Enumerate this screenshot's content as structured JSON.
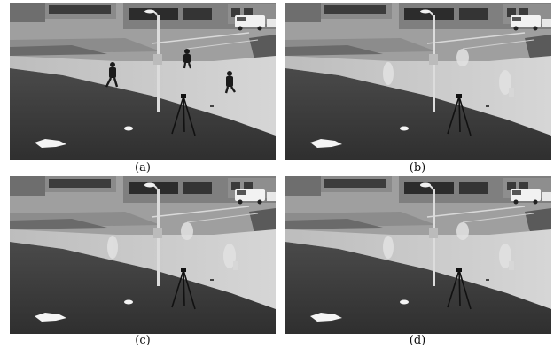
{
  "panels": [
    {
      "id": "a",
      "caption": "(a)",
      "variant": "original",
      "pedestrians": 3
    },
    {
      "id": "b",
      "caption": "(b)",
      "variant": "ghost",
      "pedestrians": 3
    },
    {
      "id": "c",
      "caption": "(c)",
      "variant": "ghost",
      "pedestrians": 3
    },
    {
      "id": "d",
      "caption": "(d)",
      "variant": "ghost",
      "pedestrians": 3
    }
  ],
  "colors": {
    "grass": "#3a3a3a",
    "pavement": "#c9c9c9",
    "road": "#a7a7a7",
    "building": "#7c7c7c",
    "window": "#2a2a2a",
    "figure": "#1a1a1a",
    "ghost": "#e6e6e6"
  }
}
